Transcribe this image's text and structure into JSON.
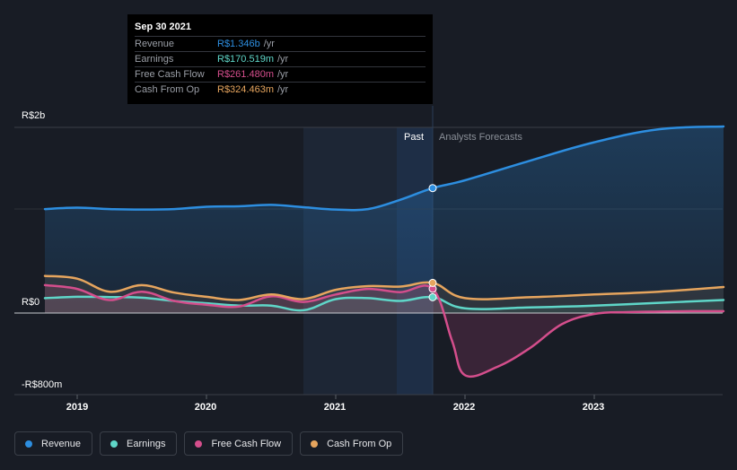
{
  "chart_data": {
    "type": "line",
    "title": "",
    "ylabel": "",
    "xlabel": "",
    "currency": "R$",
    "y_ticks": [
      "R$2b",
      "R$0",
      "-R$800m"
    ],
    "ylim": [
      -800,
      2000
    ],
    "x_ticks": [
      "2019",
      "2020",
      "2021",
      "2022",
      "2023"
    ],
    "xlim": [
      2018.7,
      2024.0
    ],
    "past_label": "Past",
    "forecast_label": "Analysts Forecasts",
    "past_end": 2021.75,
    "shaded_past_start": 2020.75,
    "colors": {
      "revenue": "#2d8ee0",
      "earnings": "#5fd6c8",
      "free_cash_flow": "#d44e8c",
      "cash_from_op": "#e6a55e"
    },
    "series": [
      {
        "name": "Revenue",
        "key": "revenue",
        "x": [
          2018.75,
          2019.0,
          2019.25,
          2019.5,
          2019.75,
          2020.0,
          2020.25,
          2020.5,
          2020.75,
          2021.0,
          2021.25,
          2021.5,
          2021.75,
          2022.0,
          2022.5,
          2023.0,
          2023.5,
          2024.0
        ],
        "values": [
          1120,
          1135,
          1120,
          1115,
          1120,
          1145,
          1150,
          1165,
          1140,
          1115,
          1120,
          1220,
          1346,
          1430,
          1640,
          1840,
          1980,
          2010
        ]
      },
      {
        "name": "Earnings",
        "key": "earnings",
        "x": [
          2018.75,
          2019.0,
          2019.25,
          2019.5,
          2019.75,
          2020.0,
          2020.25,
          2020.5,
          2020.75,
          2021.0,
          2021.25,
          2021.5,
          2021.75,
          2022.0,
          2022.5,
          2023.0,
          2023.5,
          2024.0
        ],
        "values": [
          160,
          175,
          172,
          165,
          130,
          105,
          80,
          80,
          30,
          150,
          160,
          130,
          170.5,
          50,
          60,
          80,
          110,
          140
        ]
      },
      {
        "name": "Free Cash Flow",
        "key": "free_cash_flow",
        "x": [
          2018.75,
          2019.0,
          2019.25,
          2019.5,
          2019.75,
          2020.0,
          2020.25,
          2020.5,
          2020.75,
          2021.0,
          2021.25,
          2021.5,
          2021.75,
          2021.9,
          2022.0,
          2022.25,
          2022.5,
          2022.75,
          2023.0,
          2023.25,
          2023.5,
          2023.75,
          2024.0
        ],
        "values": [
          300,
          260,
          140,
          230,
          130,
          90,
          70,
          180,
          120,
          200,
          260,
          225,
          261.5,
          -300,
          -670,
          -580,
          -380,
          -120,
          -10,
          10,
          15,
          20,
          20
        ]
      },
      {
        "name": "Cash From Op",
        "key": "cash_from_op",
        "x": [
          2018.75,
          2019.0,
          2019.25,
          2019.5,
          2019.75,
          2020.0,
          2020.25,
          2020.5,
          2020.75,
          2021.0,
          2021.25,
          2021.5,
          2021.75,
          2022.0,
          2022.5,
          2023.0,
          2023.5,
          2024.0
        ],
        "values": [
          400,
          370,
          230,
          300,
          220,
          175,
          140,
          200,
          150,
          250,
          290,
          285,
          324.5,
          160,
          170,
          200,
          230,
          280
        ]
      }
    ],
    "tooltip": {
      "date": "Sep 30 2021",
      "rows": [
        {
          "name": "Revenue",
          "value": "R$1.346b",
          "unit": "/yr",
          "key": "revenue"
        },
        {
          "name": "Earnings",
          "value": "R$170.519m",
          "unit": "/yr",
          "key": "earnings"
        },
        {
          "name": "Free Cash Flow",
          "value": "R$261.480m",
          "unit": "/yr",
          "key": "free_cash_flow"
        },
        {
          "name": "Cash From Op",
          "value": "R$324.463m",
          "unit": "/yr",
          "key": "cash_from_op"
        }
      ]
    },
    "legend": [
      {
        "label": "Revenue",
        "key": "revenue"
      },
      {
        "label": "Earnings",
        "key": "earnings"
      },
      {
        "label": "Free Cash Flow",
        "key": "free_cash_flow"
      },
      {
        "label": "Cash From Op",
        "key": "cash_from_op"
      }
    ]
  }
}
